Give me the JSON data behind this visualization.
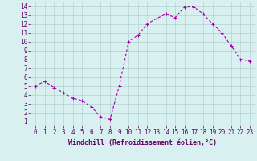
{
  "x": [
    0,
    1,
    2,
    3,
    4,
    5,
    6,
    7,
    8,
    9,
    10,
    11,
    12,
    13,
    14,
    15,
    16,
    17,
    18,
    19,
    20,
    21,
    22,
    23
  ],
  "y": [
    5.0,
    5.5,
    4.8,
    4.2,
    3.6,
    3.3,
    2.6,
    1.5,
    1.2,
    5.0,
    10.0,
    10.7,
    12.0,
    12.6,
    13.1,
    12.7,
    13.9,
    13.9,
    13.1,
    12.0,
    11.0,
    9.5,
    8.0,
    7.8
  ],
  "line_color": "#aa00aa",
  "marker": "+",
  "marker_size": 3,
  "linewidth": 0.8,
  "bg_color": "#d8f0f0",
  "grid_color": "#aacccc",
  "xlabel": "Windchill (Refroidissement éolien,°C)",
  "xlabel_fontsize": 6,
  "ylabel_ticks": [
    1,
    2,
    3,
    4,
    5,
    6,
    7,
    8,
    9,
    10,
    11,
    12,
    13,
    14
  ],
  "xlim": [
    -0.5,
    23.5
  ],
  "ylim": [
    0.5,
    14.5
  ],
  "tick_fontsize": 5.5,
  "axis_label_color": "#660066",
  "tick_color": "#660066",
  "border_color": "#660066",
  "grid_linewidth": 0.4
}
